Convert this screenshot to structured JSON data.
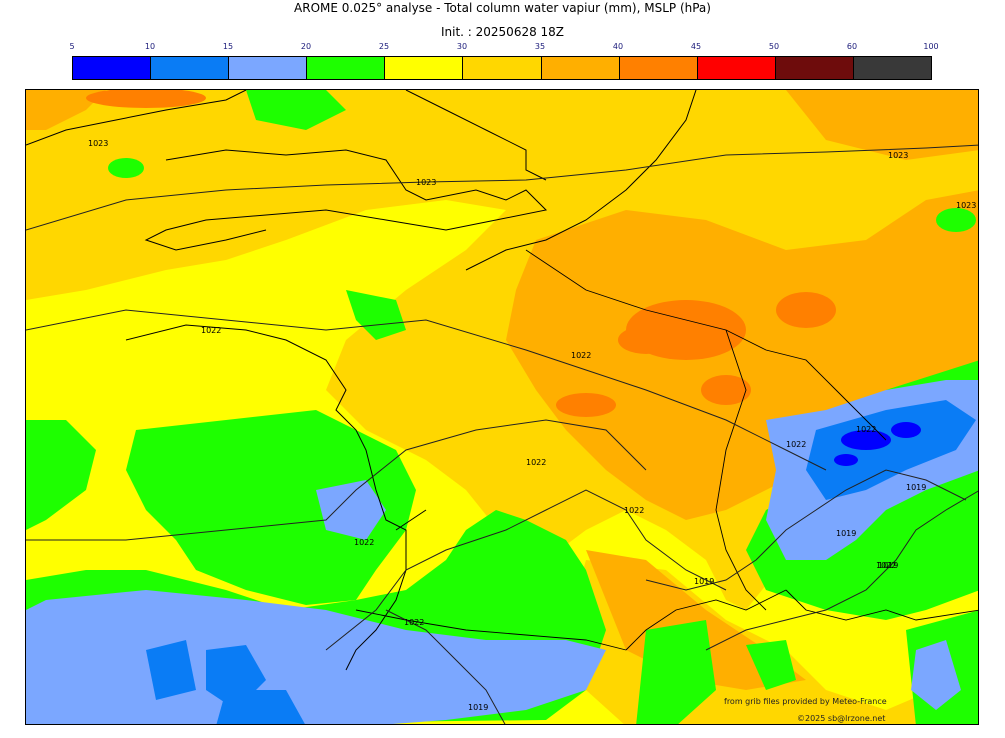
{
  "header": {
    "title": "AROME 0.025° analyse - Total column water vapiur (mm), MSLP (hPa)",
    "init": "Init. : 20250628 18Z"
  },
  "colorbar": {
    "ticks": [
      "5",
      "10",
      "15",
      "20",
      "25",
      "30",
      "35",
      "40",
      "45",
      "50",
      "60",
      "100"
    ],
    "colors": [
      "#0000ff",
      "#0a7cf5",
      "#7ba7ff",
      "#1eff00",
      "#ffff00",
      "#ffd700",
      "#ffaf00",
      "#ff8000",
      "#ff0000",
      "#6e0c0c",
      "#393939"
    ]
  },
  "map": {
    "isobar_labels": [
      "1023",
      "1023",
      "1023",
      "1023",
      "1022",
      "1022",
      "1022",
      "1022",
      "1022",
      "1022",
      "1022",
      "1022",
      "1022",
      "1019",
      "1019",
      "1019",
      "1019",
      "1019"
    ]
  },
  "footer": {
    "source": "from grib files provided by Meteo-France",
    "copyright": "©2025 sb@lrzone.net"
  }
}
